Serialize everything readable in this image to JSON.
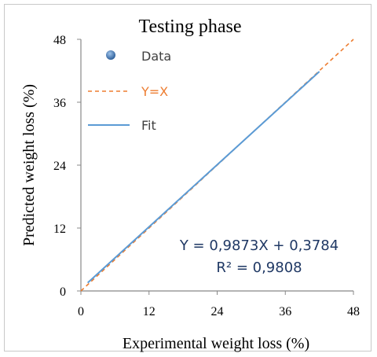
{
  "chart_data": {
    "type": "scatter",
    "title": "Testing phase",
    "xlabel": "Experimental weight loss (%)",
    "ylabel": "Predicted  weight loss  (%)",
    "xlim": [
      0,
      48
    ],
    "ylim": [
      0,
      48
    ],
    "xticks": [
      "0",
      "12",
      "24",
      "36",
      "48"
    ],
    "yticks": [
      "0",
      "12",
      "24",
      "36",
      "48"
    ],
    "grid": false,
    "legend_position": "top-left",
    "legend": [
      "Data",
      "Y=X",
      "Fit"
    ],
    "identity_line": {
      "name": "Y=X",
      "color": "#ed7d31",
      "dash": true,
      "x": [
        0,
        48
      ],
      "y": [
        0,
        48
      ]
    },
    "fit_line": {
      "name": "Fit",
      "color": "#5b9bd5",
      "slope": 0.9873,
      "intercept": 0.3784,
      "x_range": [
        1.2,
        42.0
      ]
    },
    "data_series": {
      "name": "Data",
      "color": "#4f81bd"
    },
    "equation": "Y = 0,9873X + 0,3784",
    "r_squared": "R² = 0,9808"
  }
}
